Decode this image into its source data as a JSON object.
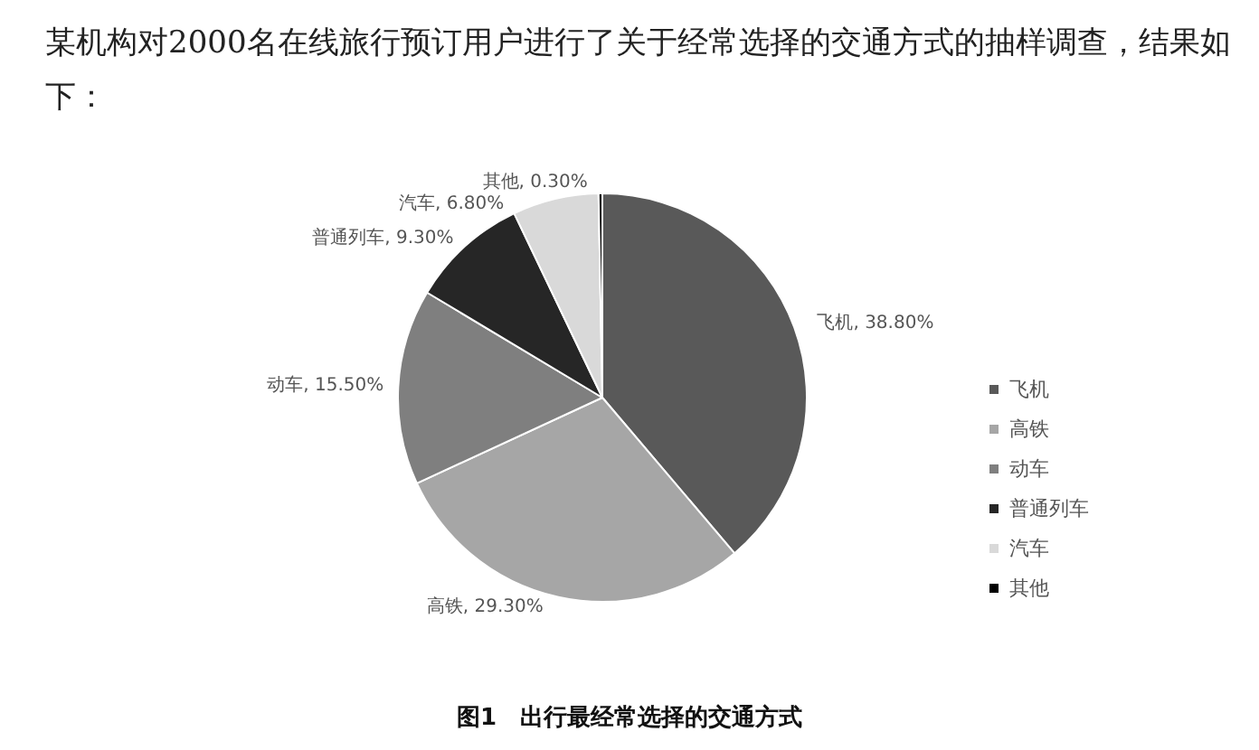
{
  "chart_data": {
    "type": "pie",
    "title": "图1　出行最经常选择的交通方式",
    "annotations": [
      "某机构对2000名在线旅行预订用户进行了关于经常选择的交通方式的抽样调查，结果如下："
    ],
    "categories": [
      "飞机",
      "高铁",
      "动车",
      "普通列车",
      "汽车",
      "其他"
    ],
    "values": [
      38.8,
      29.3,
      15.5,
      9.3,
      6.8,
      0.3
    ],
    "value_labels": [
      "飞机, 38.80%",
      "高铁, 29.30%",
      "动车, 15.50%",
      "普通列车, 9.30%",
      "汽车, 6.80%",
      "其他, 0.30%"
    ],
    "colors": [
      "#595959",
      "#a6a6a6",
      "#7f7f7f",
      "#262626",
      "#d9d9d9",
      "#000000"
    ],
    "legend": "right"
  }
}
